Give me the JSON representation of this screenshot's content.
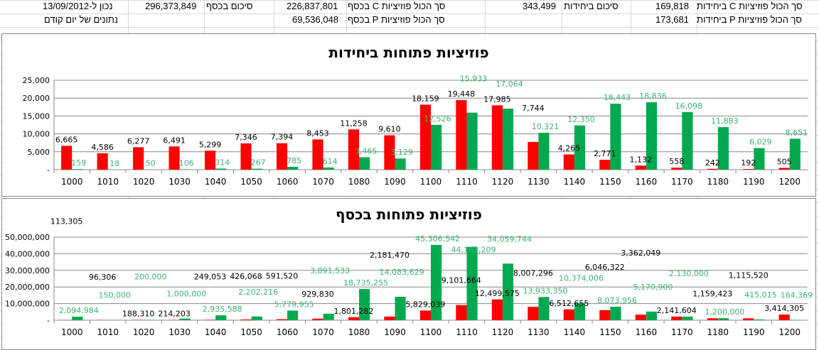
{
  "header": {
    "row1": {
      "date_label": "נכון ל-13/09/2012",
      "money_total_label": "סיכום בכסף",
      "money_total": "296,373,849",
      "c_money_label": "סך הכול פוזיציות C בכסף",
      "c_money": "226,837,801",
      "units_total_label": "סיכום ביחידות",
      "units_total": "343,499",
      "c_units_label": "סך הכול פוזיציות C ביחידות",
      "c_units": "169,818"
    },
    "row2": {
      "prev_day_label": "נתונים של יום קודם",
      "p_money_label": "סך הכול פוזיציות P בכסף",
      "p_money": "69,536,048",
      "p_units_label": "סך הכול פוזיציות P ביחידות",
      "p_units": "173,681"
    }
  },
  "colors": {
    "red": "#ff0000",
    "green": "#00a94f",
    "green_label": "#3cb371"
  },
  "chart_data": [
    {
      "type": "bar",
      "title": "פוזיציות פתוחות ביחידות",
      "ylim": [
        0,
        25000
      ],
      "yticks": [
        "-",
        "5,000",
        "10,000",
        "15,000",
        "20,000",
        "25,000"
      ],
      "categories": [
        "1000",
        "1010",
        "1020",
        "1030",
        "1040",
        "1050",
        "1060",
        "1070",
        "1080",
        "1090",
        "1100",
        "1110",
        "1120",
        "1130",
        "1140",
        "1150",
        "1160",
        "1170",
        "1180",
        "1190",
        "1200"
      ],
      "series": [
        {
          "name": "red",
          "values": [
            6665,
            4586,
            6277,
            6491,
            5299,
            7346,
            7394,
            8453,
            11258,
            9610,
            18159,
            19448,
            17985,
            7744,
            4265,
            2771,
            1132,
            558,
            242,
            192,
            505
          ]
        },
        {
          "name": "green",
          "values": [
            159,
            18,
            50,
            106,
            314,
            267,
            785,
            614,
            3465,
            3129,
            12526,
            15933,
            17064,
            10321,
            12350,
            18443,
            18836,
            16098,
            11883,
            6029,
            8651
          ]
        }
      ]
    },
    {
      "type": "bar",
      "title": "פוזיציות פתוחות בכסף",
      "ylim": [
        0,
        50000000
      ],
      "yticks": [
        "-",
        "10,000,000",
        "20,000,000",
        "30,000,000",
        "40,000,000",
        "50,000,000"
      ],
      "categories": [
        "1000",
        "1010",
        "1020",
        "1030",
        "1040",
        "1050",
        "1060",
        "1070",
        "1080",
        "1090",
        "1100",
        "1110",
        "1120",
        "1130",
        "1140",
        "1150",
        "1160",
        "1170",
        "1180",
        "1190",
        "1200"
      ],
      "series": [
        {
          "name": "red",
          "values": [
            113305,
            96306,
            188310,
            214203,
            249053,
            426068,
            591520,
            929830,
            1801282,
            2181470,
            5829039,
            9101664,
            12499575,
            8007296,
            6512655,
            6046322,
            3362049,
            2141604,
            1159423,
            1115520,
            3414305
          ]
        },
        {
          "name": "green",
          "values": [
            2094984,
            150000,
            200000,
            1000000,
            2935588,
            2202216,
            5779955,
            3891533,
            18735255,
            14083629,
            45306542,
            44182209,
            34059744,
            13933350,
            10374006,
            8073956,
            5170900,
            2130000,
            1200000,
            415015,
            164369
          ]
        }
      ]
    }
  ]
}
